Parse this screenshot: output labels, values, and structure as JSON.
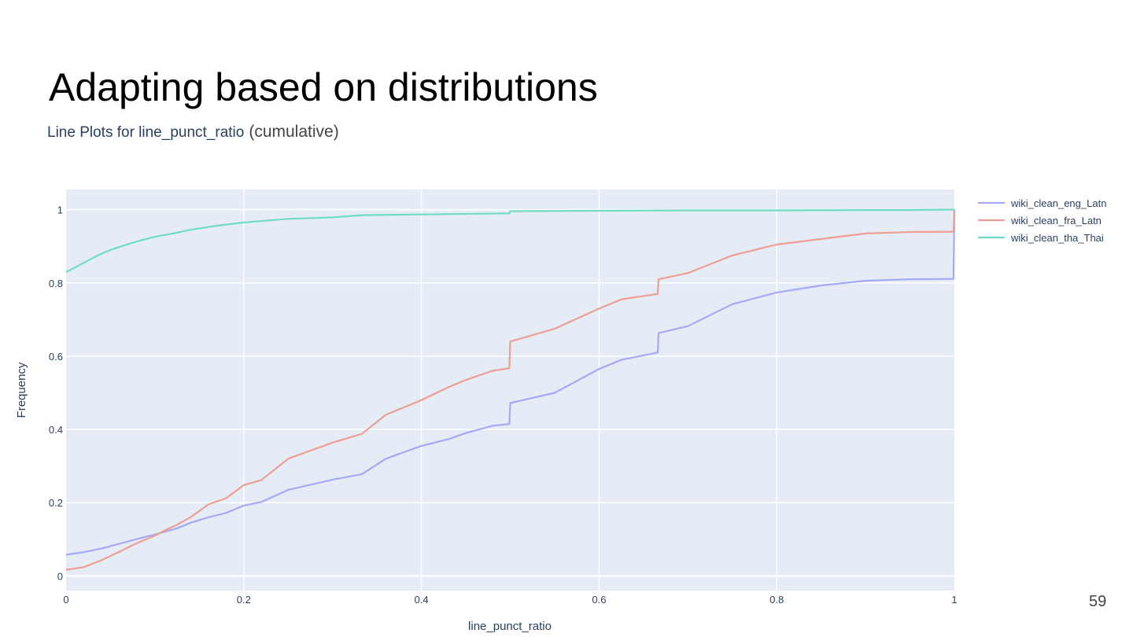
{
  "slide": {
    "title": "Adapting based on distributions",
    "page_number": "59"
  },
  "chart_data": {
    "type": "line",
    "title": "Line Plots for line_punct_ratio",
    "subtitle": "(cumulative)",
    "xlabel": "line_punct_ratio",
    "ylabel": "Frequency",
    "xlim": [
      0,
      1
    ],
    "ylim": [
      -0.04,
      1.055
    ],
    "x_ticks": [
      0,
      0.2,
      0.4,
      0.6,
      0.8,
      1
    ],
    "x_tick_labels": [
      "0",
      "0.2",
      "0.4",
      "0.6",
      "0.8",
      "1"
    ],
    "y_ticks": [
      0,
      0.2,
      0.4,
      0.6,
      0.8,
      1
    ],
    "y_tick_labels": [
      "0",
      "0.2",
      "0.4",
      "0.6",
      "0.8",
      "1"
    ],
    "grid": true,
    "legend_position": "top-right",
    "plot_background": "#e5ecf6",
    "grid_color": "#ffffff",
    "series": [
      {
        "name": "wiki_clean_eng_Latn",
        "color": "#a4aaf5",
        "x": [
          0,
          0.02,
          0.04,
          0.06,
          0.08,
          0.1,
          0.11,
          0.125,
          0.14,
          0.16,
          0.18,
          0.2,
          0.22,
          0.25,
          0.3,
          0.333,
          0.36,
          0.4,
          0.43,
          0.45,
          0.48,
          0.499,
          0.5,
          0.55,
          0.6,
          0.625,
          0.666,
          0.667,
          0.7,
          0.75,
          0.8,
          0.85,
          0.9,
          0.95,
          0.999,
          1
        ],
        "y": [
          0.058,
          0.065,
          0.075,
          0.088,
          0.101,
          0.113,
          0.12,
          0.13,
          0.145,
          0.16,
          0.172,
          0.192,
          0.202,
          0.235,
          0.263,
          0.278,
          0.32,
          0.355,
          0.373,
          0.39,
          0.41,
          0.415,
          0.472,
          0.5,
          0.565,
          0.59,
          0.61,
          0.663,
          0.682,
          0.742,
          0.774,
          0.793,
          0.806,
          0.81,
          0.811,
          1
        ]
      },
      {
        "name": "wiki_clean_fra_Latn",
        "color": "#ee9e92",
        "x": [
          0,
          0.02,
          0.04,
          0.06,
          0.08,
          0.1,
          0.11,
          0.125,
          0.14,
          0.16,
          0.18,
          0.2,
          0.22,
          0.25,
          0.3,
          0.333,
          0.36,
          0.4,
          0.43,
          0.45,
          0.48,
          0.499,
          0.5,
          0.55,
          0.6,
          0.625,
          0.666,
          0.667,
          0.7,
          0.75,
          0.8,
          0.85,
          0.9,
          0.95,
          0.999,
          1
        ],
        "y": [
          0.017,
          0.024,
          0.043,
          0.066,
          0.09,
          0.11,
          0.123,
          0.14,
          0.16,
          0.195,
          0.212,
          0.248,
          0.262,
          0.32,
          0.364,
          0.388,
          0.44,
          0.48,
          0.515,
          0.535,
          0.56,
          0.567,
          0.64,
          0.675,
          0.73,
          0.755,
          0.77,
          0.81,
          0.827,
          0.875,
          0.905,
          0.92,
          0.935,
          0.939,
          0.94,
          1
        ]
      },
      {
        "name": "wiki_clean_tha_Thai",
        "color": "#72dcc2",
        "x": [
          0,
          0.01,
          0.02,
          0.03,
          0.04,
          0.05,
          0.06,
          0.07,
          0.08,
          0.09,
          0.1,
          0.12,
          0.14,
          0.166,
          0.2,
          0.25,
          0.3,
          0.333,
          0.4,
          0.499,
          0.5,
          0.6,
          0.7,
          0.8,
          0.9,
          0.95,
          0.99,
          1
        ],
        "y": [
          0.83,
          0.842,
          0.855,
          0.868,
          0.88,
          0.89,
          0.898,
          0.906,
          0.913,
          0.92,
          0.926,
          0.935,
          0.945,
          0.955,
          0.965,
          0.975,
          0.979,
          0.985,
          0.987,
          0.99,
          0.996,
          0.997,
          0.998,
          0.998,
          0.999,
          0.999,
          1.0,
          1.0
        ]
      }
    ]
  }
}
